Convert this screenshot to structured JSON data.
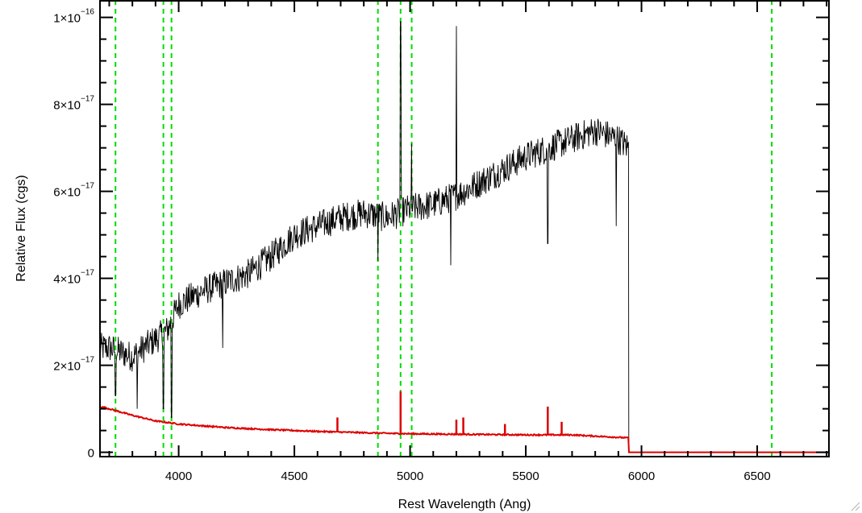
{
  "chart_data": {
    "type": "line",
    "title": "",
    "xlabel": "Rest Wavelength (Ang)",
    "ylabel": "Relative Flux (cgs)",
    "xlim": [
      3660,
      6810
    ],
    "ylim": [
      -1e-18,
      1.04e-16
    ],
    "grid": false,
    "x_ticks": [
      {
        "value": 4000,
        "label": "4000"
      },
      {
        "value": 4500,
        "label": "4500"
      },
      {
        "value": 5000,
        "label": "5000"
      },
      {
        "value": 5500,
        "label": "5500"
      },
      {
        "value": 6000,
        "label": "6000"
      },
      {
        "value": 6500,
        "label": "6500"
      }
    ],
    "y_ticks": [
      {
        "value": 0,
        "label": "0"
      },
      {
        "value": 2e-17,
        "mantissa": "2",
        "times": "×10",
        "exp": "−17"
      },
      {
        "value": 4e-17,
        "mantissa": "4",
        "times": "×10",
        "exp": "−17"
      },
      {
        "value": 6e-17,
        "mantissa": "6",
        "times": "×10",
        "exp": "−17"
      },
      {
        "value": 8e-17,
        "mantissa": "8",
        "times": "×10",
        "exp": "−17"
      },
      {
        "value": 1e-16,
        "mantissa": "1",
        "times": "×10",
        "exp": "−16"
      }
    ],
    "reference_lines_x": [
      3727,
      3934,
      3969,
      4861,
      4959,
      5007,
      6563
    ],
    "colors": {
      "spectrum": "#000000",
      "error": "#dd0000",
      "reference": "#00dd00",
      "axis": "#000000"
    },
    "series": [
      {
        "role": "spectrum",
        "base_curve": {
          "x": [
            3660,
            3700,
            3800,
            3900,
            3950,
            4000,
            4100,
            4200,
            4300,
            4400,
            4500,
            4600,
            4700,
            4800,
            4900,
            5000,
            5100,
            5200,
            5300,
            5400,
            5500,
            5600,
            5700,
            5800,
            5900,
            5945
          ],
          "y": [
            2.4e-17,
            2.4e-17,
            2.2e-17,
            2.6e-17,
            2.8e-17,
            3.4e-17,
            3.7e-17,
            3.9e-17,
            4.1e-17,
            4.5e-17,
            5e-17,
            5.2e-17,
            5.4e-17,
            5.5e-17,
            5.4e-17,
            5.6e-17,
            5.7e-17,
            5.9e-17,
            6.2e-17,
            6.5e-17,
            6.8e-17,
            7e-17,
            7.2e-17,
            7.4e-17,
            7.2e-17,
            7e-17
          ]
        },
        "noise_amplitude": 3.5e-18,
        "features": [
          {
            "x": 3727,
            "y": 1.3e-17
          },
          {
            "x": 3820,
            "y": 1e-17
          },
          {
            "x": 3934,
            "y": 1e-17
          },
          {
            "x": 3969,
            "y": 8e-18
          },
          {
            "x": 4190,
            "y": 2.4e-17
          },
          {
            "x": 4861,
            "y": 4.4e-17
          },
          {
            "x": 4959,
            "y": 9.9e-17
          },
          {
            "x": 5007,
            "y": 7.1e-17
          },
          {
            "x": 5175,
            "y": 4.3e-17
          },
          {
            "x": 5200,
            "y": 9.8e-17
          },
          {
            "x": 5595,
            "y": 4.8e-17
          },
          {
            "x": 5890,
            "y": 5.2e-17
          }
        ],
        "cutoff_x": 5945,
        "cutoff_y": 0
      },
      {
        "role": "error",
        "x": [
          3660,
          3700,
          3800,
          3900,
          4000,
          4200,
          4400,
          4600,
          4800,
          4950,
          5100,
          5300,
          5500,
          5700,
          5945,
          5946,
          6810
        ],
        "y": [
          1.05e-17,
          1e-17,
          8.5e-18,
          7.2e-18,
          6.5e-18,
          5.7e-18,
          5.2e-18,
          4.8e-18,
          4.5e-18,
          4.3e-18,
          4.2e-18,
          4.1e-18,
          4e-18,
          4e-18,
          3.3e-18,
          0,
          0
        ],
        "spikes": [
          {
            "x": 4686,
            "y": 8e-18
          },
          {
            "x": 4959,
            "y": 1.4e-17
          },
          {
            "x": 5200,
            "y": 7.5e-18
          },
          {
            "x": 5230,
            "y": 8e-18
          },
          {
            "x": 5410,
            "y": 6.5e-18
          },
          {
            "x": 5595,
            "y": 1.05e-17
          },
          {
            "x": 5655,
            "y": 7e-18
          }
        ]
      }
    ]
  }
}
